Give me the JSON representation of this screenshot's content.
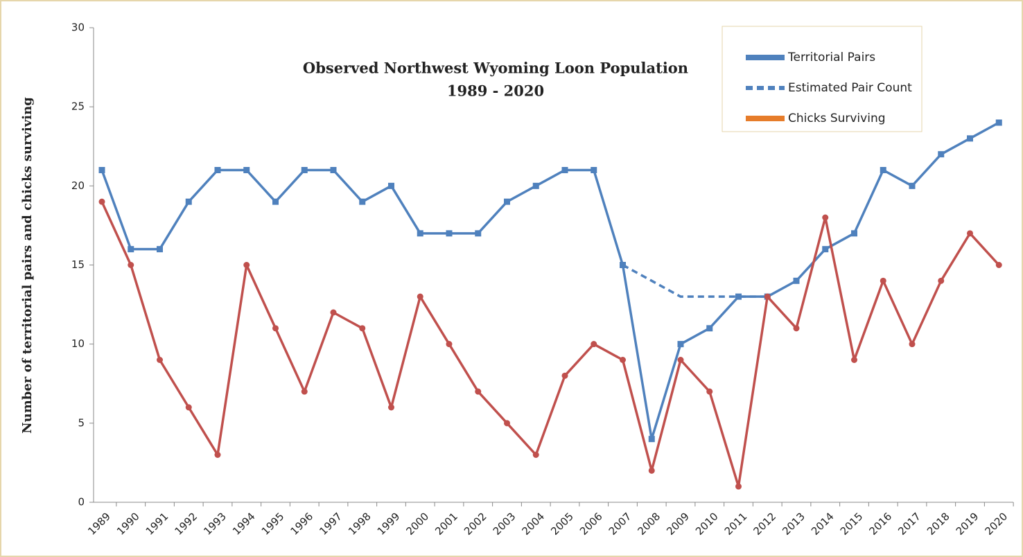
{
  "chart_data": {
    "type": "line",
    "title": [
      "Observed Northwest Wyoming Loon Population",
      "1989 - 2020"
    ],
    "ylabel": "Number of territorial pairs and chicks surviving",
    "categories": [
      "1989",
      "1990",
      "1991",
      "1992",
      "1993",
      "1994",
      "1995",
      "1996",
      "1997",
      "1998",
      "1999",
      "2000",
      "2001",
      "2002",
      "2003",
      "2004",
      "2005",
      "2006",
      "2007",
      "2008",
      "2009",
      "2010",
      "2011",
      "2012",
      "2013",
      "2014",
      "2015",
      "2016",
      "2017",
      "2018",
      "2019",
      "2020"
    ],
    "series": [
      {
        "name": "Territorial Pairs",
        "color": "#4f81bd",
        "dash": false,
        "marker": "square",
        "values": [
          21,
          16,
          16,
          19,
          21,
          21,
          19,
          21,
          21,
          19,
          20,
          17,
          17,
          17,
          19,
          20,
          21,
          21,
          15,
          4,
          10,
          11,
          13,
          13,
          14,
          16,
          17,
          21,
          20,
          22,
          23,
          24
        ]
      },
      {
        "name": "Estimated Pair Count",
        "color": "#4f81bd",
        "dash": true,
        "marker": "none",
        "values": [
          null,
          null,
          null,
          null,
          null,
          null,
          null,
          null,
          null,
          null,
          null,
          null,
          null,
          null,
          null,
          null,
          null,
          null,
          15,
          14,
          13,
          13,
          13,
          13,
          null,
          null,
          null,
          null,
          null,
          null,
          null,
          null
        ]
      },
      {
        "name": "Chicks Surviving",
        "color": "#c0504d",
        "legend_color": "#e67c2a",
        "dash": false,
        "marker": "circle",
        "values": [
          19,
          15,
          9,
          6,
          3,
          15,
          11,
          7,
          12,
          11,
          6,
          13,
          10,
          7,
          5,
          3,
          8,
          10,
          9,
          2,
          9,
          7,
          1,
          13,
          11,
          18,
          9,
          14,
          10,
          14,
          17,
          15
        ]
      }
    ],
    "ylim": [
      0,
      30
    ],
    "yticks": [
      0,
      5,
      10,
      15,
      20,
      25,
      30
    ],
    "legend": "upper right"
  }
}
